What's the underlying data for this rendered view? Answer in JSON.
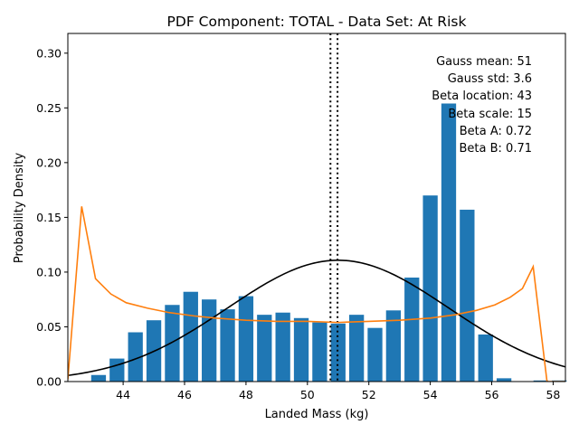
{
  "chart_data": {
    "type": "bar",
    "title": "PDF Component: TOTAL - Data Set: At Risk",
    "xlabel": "Landed Mass (kg)",
    "ylabel": "Probability Density",
    "xlim": [
      42.2,
      58.4
    ],
    "ylim": [
      0,
      0.318
    ],
    "x_ticks": [
      44,
      46,
      48,
      50,
      52,
      54,
      56,
      58
    ],
    "y_ticks": [
      0.0,
      0.05,
      0.1,
      0.15,
      0.2,
      0.25,
      0.3
    ],
    "x_tick_labels": [
      "44",
      "46",
      "48",
      "50",
      "52",
      "54",
      "56",
      "58"
    ],
    "y_tick_labels": [
      "0.00",
      "0.05",
      "0.10",
      "0.15",
      "0.20",
      "0.25",
      "0.30"
    ],
    "histogram": {
      "color": "#1f77b4",
      "bin_width": 0.6,
      "bars": [
        {
          "x": 43.2,
          "y": 0.006
        },
        {
          "x": 43.8,
          "y": 0.021
        },
        {
          "x": 44.4,
          "y": 0.045
        },
        {
          "x": 45.0,
          "y": 0.056
        },
        {
          "x": 45.6,
          "y": 0.07
        },
        {
          "x": 46.2,
          "y": 0.082
        },
        {
          "x": 46.8,
          "y": 0.075
        },
        {
          "x": 47.4,
          "y": 0.066
        },
        {
          "x": 48.0,
          "y": 0.078
        },
        {
          "x": 48.6,
          "y": 0.061
        },
        {
          "x": 49.2,
          "y": 0.063
        },
        {
          "x": 49.8,
          "y": 0.058
        },
        {
          "x": 50.4,
          "y": 0.054
        },
        {
          "x": 51.0,
          "y": 0.053
        },
        {
          "x": 51.6,
          "y": 0.061
        },
        {
          "x": 52.2,
          "y": 0.049
        },
        {
          "x": 52.8,
          "y": 0.065
        },
        {
          "x": 53.4,
          "y": 0.095
        },
        {
          "x": 54.0,
          "y": 0.17
        },
        {
          "x": 54.6,
          "y": 0.254
        },
        {
          "x": 55.2,
          "y": 0.157
        },
        {
          "x": 55.8,
          "y": 0.043
        },
        {
          "x": 56.4,
          "y": 0.003
        },
        {
          "x": 57.6,
          "y": 0.001
        },
        {
          "x": 58.2,
          "y": 0.001
        }
      ]
    },
    "gauss_curve": {
      "color": "#000000",
      "mean": 51,
      "std": 3.6
    },
    "beta_curve": {
      "color": "#ff7f0e",
      "points": [
        [
          42.2,
          0.002
        ],
        [
          42.65,
          0.16
        ],
        [
          43.1,
          0.094
        ],
        [
          43.6,
          0.08
        ],
        [
          44.1,
          0.072
        ],
        [
          44.8,
          0.067
        ],
        [
          45.5,
          0.063
        ],
        [
          46.3,
          0.06
        ],
        [
          47.0,
          0.058
        ],
        [
          48.0,
          0.056
        ],
        [
          49.0,
          0.055
        ],
        [
          50.0,
          0.055
        ],
        [
          51.0,
          0.054
        ],
        [
          52.0,
          0.055
        ],
        [
          53.0,
          0.056
        ],
        [
          54.0,
          0.058
        ],
        [
          54.8,
          0.061
        ],
        [
          55.5,
          0.065
        ],
        [
          56.1,
          0.07
        ],
        [
          56.6,
          0.077
        ],
        [
          57.0,
          0.085
        ],
        [
          57.35,
          0.105
        ],
        [
          57.8,
          0.0
        ],
        [
          58.4,
          0.0
        ]
      ]
    },
    "vlines": {
      "color": "#000000",
      "style": "dotted",
      "x": [
        50.75,
        50.98
      ]
    },
    "stats": {
      "gauss_mean": "Gauss mean: 51",
      "gauss_std": "Gauss std: 3.6",
      "beta_location": "Beta location: 43",
      "beta_scale": "Beta scale: 15",
      "beta_a": "Beta A: 0.72",
      "beta_b": "Beta B: 0.71"
    }
  }
}
